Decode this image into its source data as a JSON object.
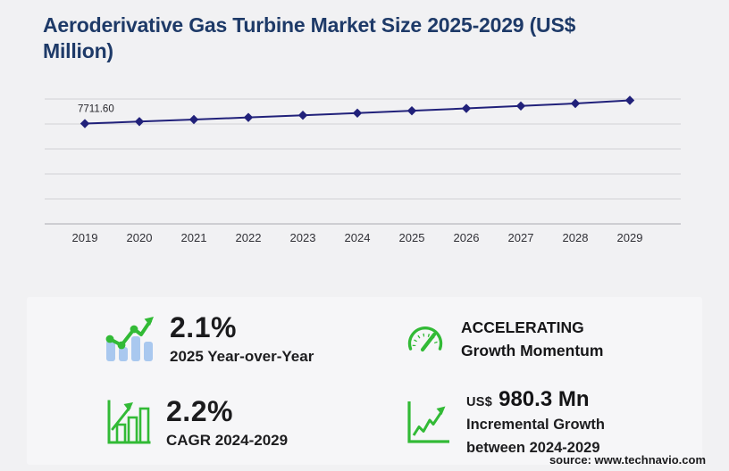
{
  "page": {
    "title": "Aeroderivative Gas Turbine Market Size 2025-2029 (US$\nMillion)",
    "source": "source: www.technavio.com"
  },
  "chart_data": {
    "type": "line",
    "title": "Aeroderivative Gas Turbine Market Size 2025-2029 (US$ Million)",
    "x": [
      "2019",
      "2020",
      "2021",
      "2022",
      "2023",
      "2024",
      "2025",
      "2026",
      "2027",
      "2028",
      "2029"
    ],
    "series": [
      {
        "name": "Market size (US$ Million)",
        "values": [
          7711.6,
          7866,
          8023,
          8184,
          8350,
          8517,
          8696,
          8879,
          9066,
          9258,
          9497
        ]
      }
    ],
    "data_labels": [
      {
        "index": 0,
        "text": "7711.60"
      }
    ],
    "ylim": [
      0,
      9600
    ],
    "grid": true,
    "gridline_count": 6,
    "legend": "none",
    "marker": "diamond",
    "colors": {
      "line": "#21217a",
      "marker": "#21217a",
      "grid": "#d8d8dc",
      "axis": "#c2c2c8",
      "tick_label": "#303036",
      "data_label": "#26262b"
    }
  },
  "stats": [
    {
      "value": "2.1%",
      "label": "2025 Year-over-Year",
      "icon": "bar-trend-icon"
    },
    {
      "line1": "ACCELERATING",
      "line2": "Growth Momentum",
      "icon": "gauge-icon"
    },
    {
      "value": "2.2%",
      "label": "CAGR 2024-2029",
      "icon": "bar-growth-icon"
    },
    {
      "prefix": "US$",
      "value": "980.3 Mn",
      "label_line1": "Incremental Growth",
      "label_line2": "between 2024-2029",
      "icon": "line-growth-icon"
    }
  ],
  "colors": {
    "title": "#1e3a68",
    "accent_green": "#32ba36",
    "bar_blue": "#a9c8ef",
    "page_bg": "#f1f1f3",
    "panel_bg": "#f6f6f8",
    "text_dark": "#1b1b1d"
  }
}
